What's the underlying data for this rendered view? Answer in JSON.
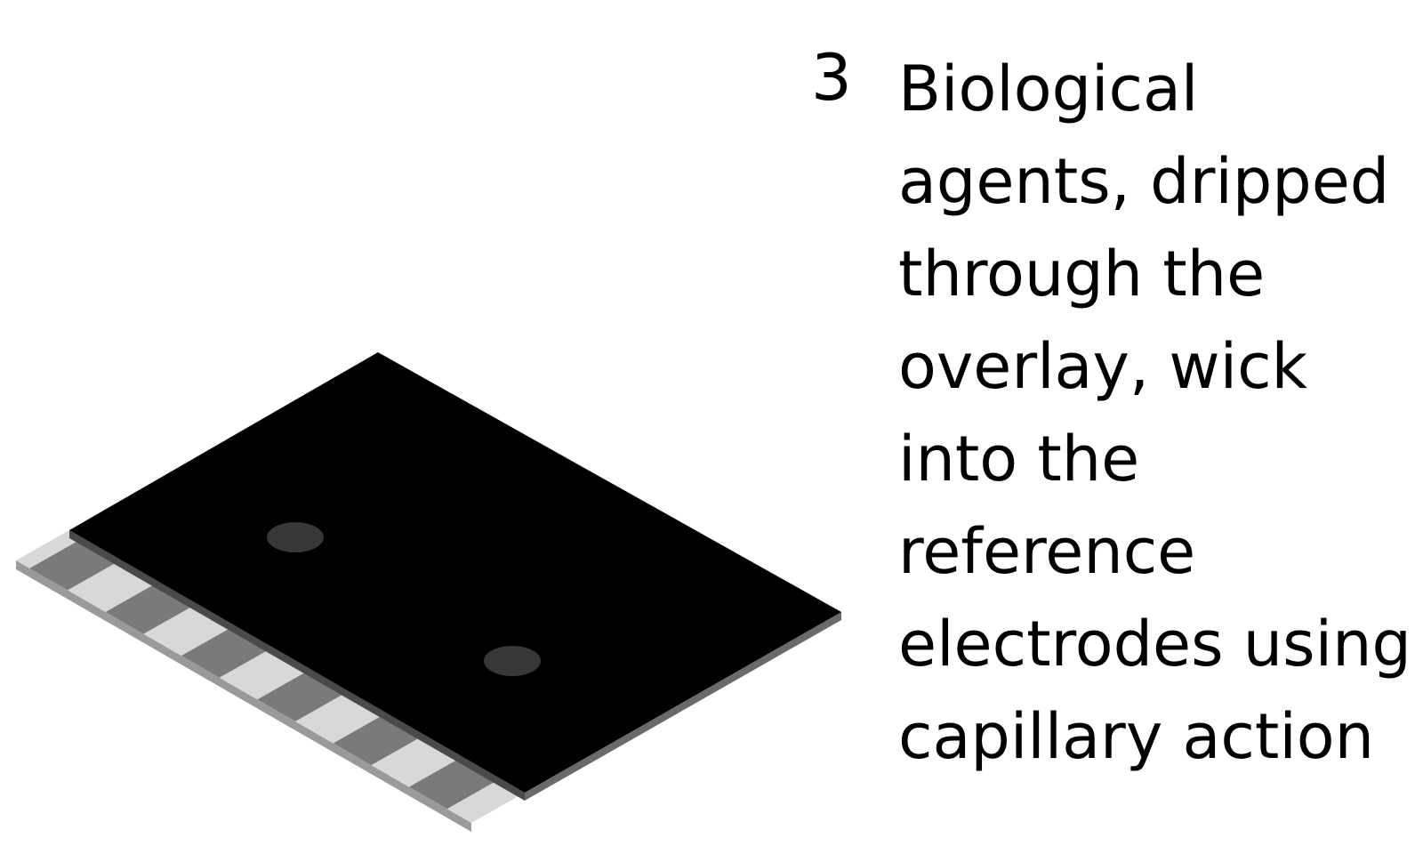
{
  "step": {
    "number": "3",
    "lines": [
      "Biological",
      "agents, dripped",
      "through the",
      "overlay, wick",
      "into the",
      "reference",
      "electrodes using",
      "capillary action"
    ]
  },
  "colors": {
    "overlay": "#000000",
    "substrate_top": "#d8d8d8",
    "substrate_edge": "#9a9a9a",
    "electrode": "#7a7a7a",
    "electrode_gap": "#e4e4e4",
    "hole": "#383838"
  },
  "icons": {
    "overlay": "black-overlay-sheet",
    "substrate": "electrode-strip-substrate",
    "holes": "drip-hole"
  }
}
